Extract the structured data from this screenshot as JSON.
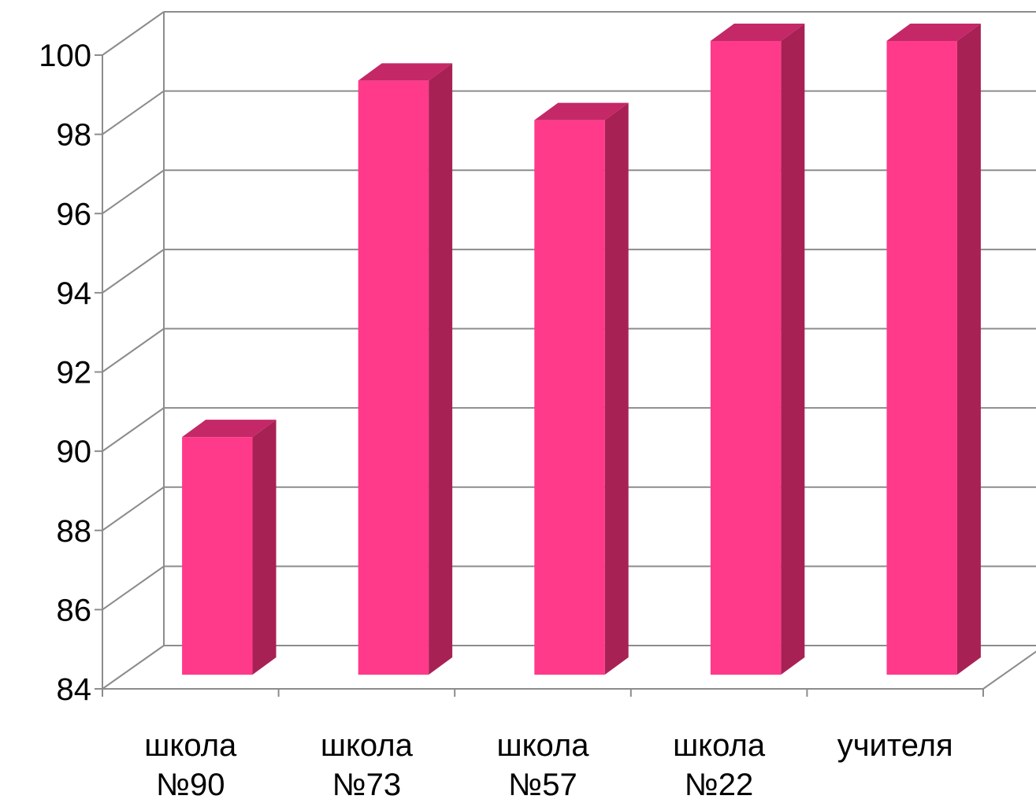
{
  "chart_data": {
    "type": "bar",
    "style": "3d-column",
    "categories": [
      [
        "школа",
        "№90"
      ],
      [
        "школа",
        "№73"
      ],
      [
        "школа",
        "№57"
      ],
      [
        "школа",
        "№22"
      ],
      [
        "учителя"
      ]
    ],
    "values": [
      90,
      99,
      98,
      100,
      100
    ],
    "ylim": [
      84,
      100
    ],
    "yticks": [
      84,
      86,
      88,
      90,
      92,
      94,
      96,
      98,
      100
    ],
    "ytick_labels": [
      "84",
      "86",
      "88",
      "90",
      "92",
      "94",
      "96",
      "98",
      "100"
    ],
    "grid": true,
    "legend": "none",
    "colors": {
      "bar_front": "#ff3a8a",
      "bar_top": "#c42866",
      "bar_side": "#a82155",
      "grid": "#8c8c8c",
      "axis": "#8c8c8c"
    }
  }
}
